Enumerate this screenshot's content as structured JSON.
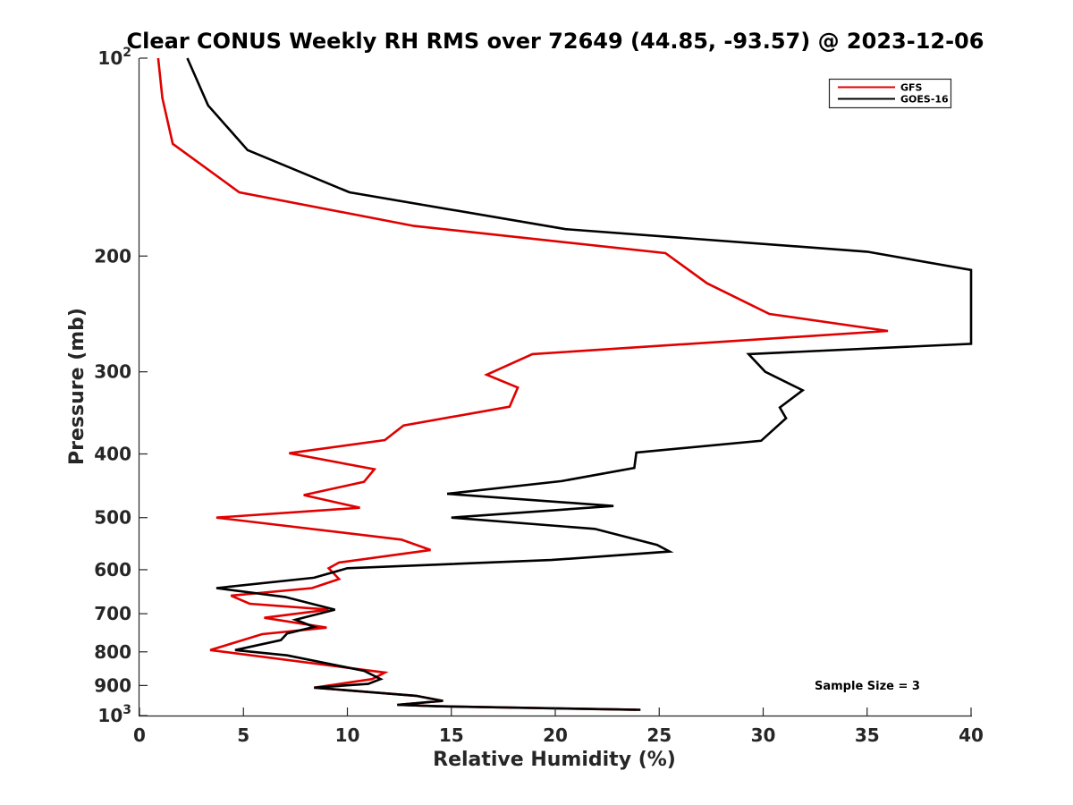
{
  "chart_data": {
    "type": "line",
    "title": "Clear CONUS Weekly RH RMS over 72649 (44.85, -93.57) @ 2023-12-06",
    "xlabel": "Relative Humidity (%)",
    "ylabel": "Pressure (mb)",
    "xlim": [
      0,
      40
    ],
    "ylim": [
      100,
      1000
    ],
    "y_scale": "log",
    "y_reversed": true,
    "grid": false,
    "legend_position": "top-right",
    "annotation": "Sample Size = 3",
    "x_ticks": [
      "0",
      "5",
      "10",
      "15",
      "20",
      "25",
      "30",
      "35",
      "40"
    ],
    "y_ticks": [
      {
        "p": 100,
        "base": "10",
        "exp": "2"
      },
      {
        "p": 200,
        "label": "200"
      },
      {
        "p": 300,
        "label": "300"
      },
      {
        "p": 400,
        "label": "400"
      },
      {
        "p": 500,
        "label": "500"
      },
      {
        "p": 600,
        "label": "600"
      },
      {
        "p": 700,
        "label": "700"
      },
      {
        "p": 800,
        "label": "800"
      },
      {
        "p": 900,
        "label": "900"
      },
      {
        "p": 1000,
        "base": "10",
        "exp": "3"
      }
    ],
    "series": [
      {
        "name": "GFS",
        "color": "#e00000",
        "points": [
          [
            0.9,
            100
          ],
          [
            1.1,
            115
          ],
          [
            1.6,
            135
          ],
          [
            4.8,
            160
          ],
          [
            13.2,
            180
          ],
          [
            25.3,
            198
          ],
          [
            27.3,
            220
          ],
          [
            30.3,
            245
          ],
          [
            36.0,
            260
          ],
          [
            18.9,
            282
          ],
          [
            16.7,
            303
          ],
          [
            18.2,
            317
          ],
          [
            17.8,
            339
          ],
          [
            12.7,
            362
          ],
          [
            11.8,
            381
          ],
          [
            7.2,
            399
          ],
          [
            11.3,
            422
          ],
          [
            10.8,
            441
          ],
          [
            7.9,
            462
          ],
          [
            10.6,
            483
          ],
          [
            3.7,
            500
          ],
          [
            12.6,
            540
          ],
          [
            14.0,
            560
          ],
          [
            9.6,
            585
          ],
          [
            9.1,
            597
          ],
          [
            9.6,
            620
          ],
          [
            8.3,
            640
          ],
          [
            4.4,
            657
          ],
          [
            5.3,
            676
          ],
          [
            9.1,
            690
          ],
          [
            6.0,
            710
          ],
          [
            9.0,
            735
          ],
          [
            5.9,
            752
          ],
          [
            3.4,
            795
          ],
          [
            11.8,
            860
          ],
          [
            11.2,
            880
          ],
          [
            8.4,
            907
          ],
          [
            13.3,
            933
          ],
          [
            14.6,
            950
          ],
          [
            12.4,
            963
          ],
          [
            14.3,
            968
          ],
          [
            23.9,
            980
          ]
        ]
      },
      {
        "name": "GOES-16",
        "color": "#000000",
        "points": [
          [
            2.3,
            100
          ],
          [
            3.3,
            118
          ],
          [
            5.2,
            138
          ],
          [
            10.1,
            160
          ],
          [
            20.5,
            182
          ],
          [
            35.0,
            197
          ],
          [
            40.0,
            210
          ],
          [
            40.0,
            272
          ],
          [
            29.3,
            282
          ],
          [
            30.1,
            300
          ],
          [
            31.9,
            320
          ],
          [
            30.8,
            340
          ],
          [
            31.1,
            353
          ],
          [
            29.9,
            382
          ],
          [
            23.9,
            398
          ],
          [
            23.8,
            420
          ],
          [
            20.3,
            440
          ],
          [
            14.8,
            460
          ],
          [
            22.8,
            480
          ],
          [
            15.0,
            500
          ],
          [
            21.9,
            520
          ],
          [
            24.9,
            550
          ],
          [
            25.5,
            563
          ],
          [
            19.8,
            580
          ],
          [
            10.0,
            597
          ],
          [
            8.4,
            617
          ],
          [
            3.7,
            640
          ],
          [
            7.0,
            660
          ],
          [
            9.4,
            690
          ],
          [
            7.5,
            715
          ],
          [
            8.4,
            733
          ],
          [
            7.1,
            750
          ],
          [
            6.8,
            768
          ],
          [
            4.6,
            795
          ],
          [
            7.1,
            810
          ],
          [
            10.8,
            855
          ],
          [
            11.6,
            880
          ],
          [
            11.0,
            895
          ],
          [
            8.4,
            907
          ],
          [
            13.3,
            933
          ],
          [
            14.6,
            950
          ],
          [
            12.4,
            963
          ],
          [
            14.3,
            968
          ],
          [
            24.1,
            980
          ]
        ]
      }
    ]
  }
}
